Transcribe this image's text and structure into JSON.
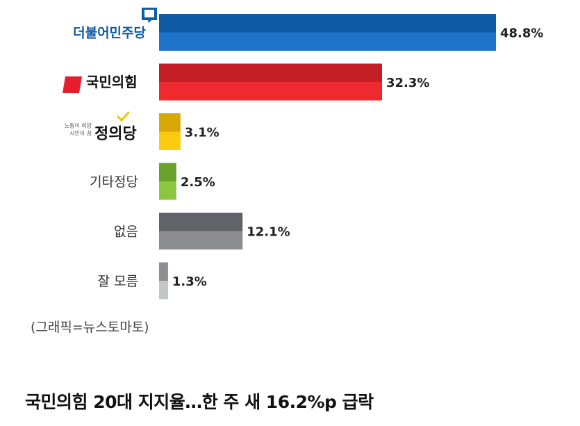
{
  "chart_data": {
    "type": "bar",
    "orientation": "horizontal",
    "categories": [
      "더불어민주당",
      "국민의힘",
      "정의당",
      "기타정당",
      "없음",
      "잘 모름"
    ],
    "values": [
      48.8,
      32.3,
      3.1,
      2.5,
      12.1,
      1.3
    ],
    "value_labels": [
      "48.8%",
      "32.3%",
      "3.1%",
      "2.5%",
      "12.1%",
      "1.3%"
    ],
    "xlim": [
      0,
      48.8
    ],
    "grid": false,
    "legend": "none",
    "colors": [
      {
        "top": "#0f5aa5",
        "bottom": "#1f73c9"
      },
      {
        "top": "#c41e26",
        "bottom": "#ee2a2e"
      },
      {
        "top": "#d8a806",
        "bottom": "#fcca10"
      },
      {
        "top": "#6aa129",
        "bottom": "#8cc63e"
      },
      {
        "top": "#606469",
        "bottom": "#8b8d91"
      },
      {
        "top": "#8c8e92",
        "bottom": "#c3c5c8"
      }
    ],
    "logo_text": {
      "minjoo": "더불어민주당",
      "ppp": "국민의힘",
      "justice": "정의당",
      "justice_tagline_1": "노동이 희망",
      "justice_tagline_2": "시민이 꿈"
    }
  },
  "credit": "(그래픽=뉴스토마토)",
  "headline": "국민의힘 20대 지지율…한 주 새 16.2%p 급락"
}
